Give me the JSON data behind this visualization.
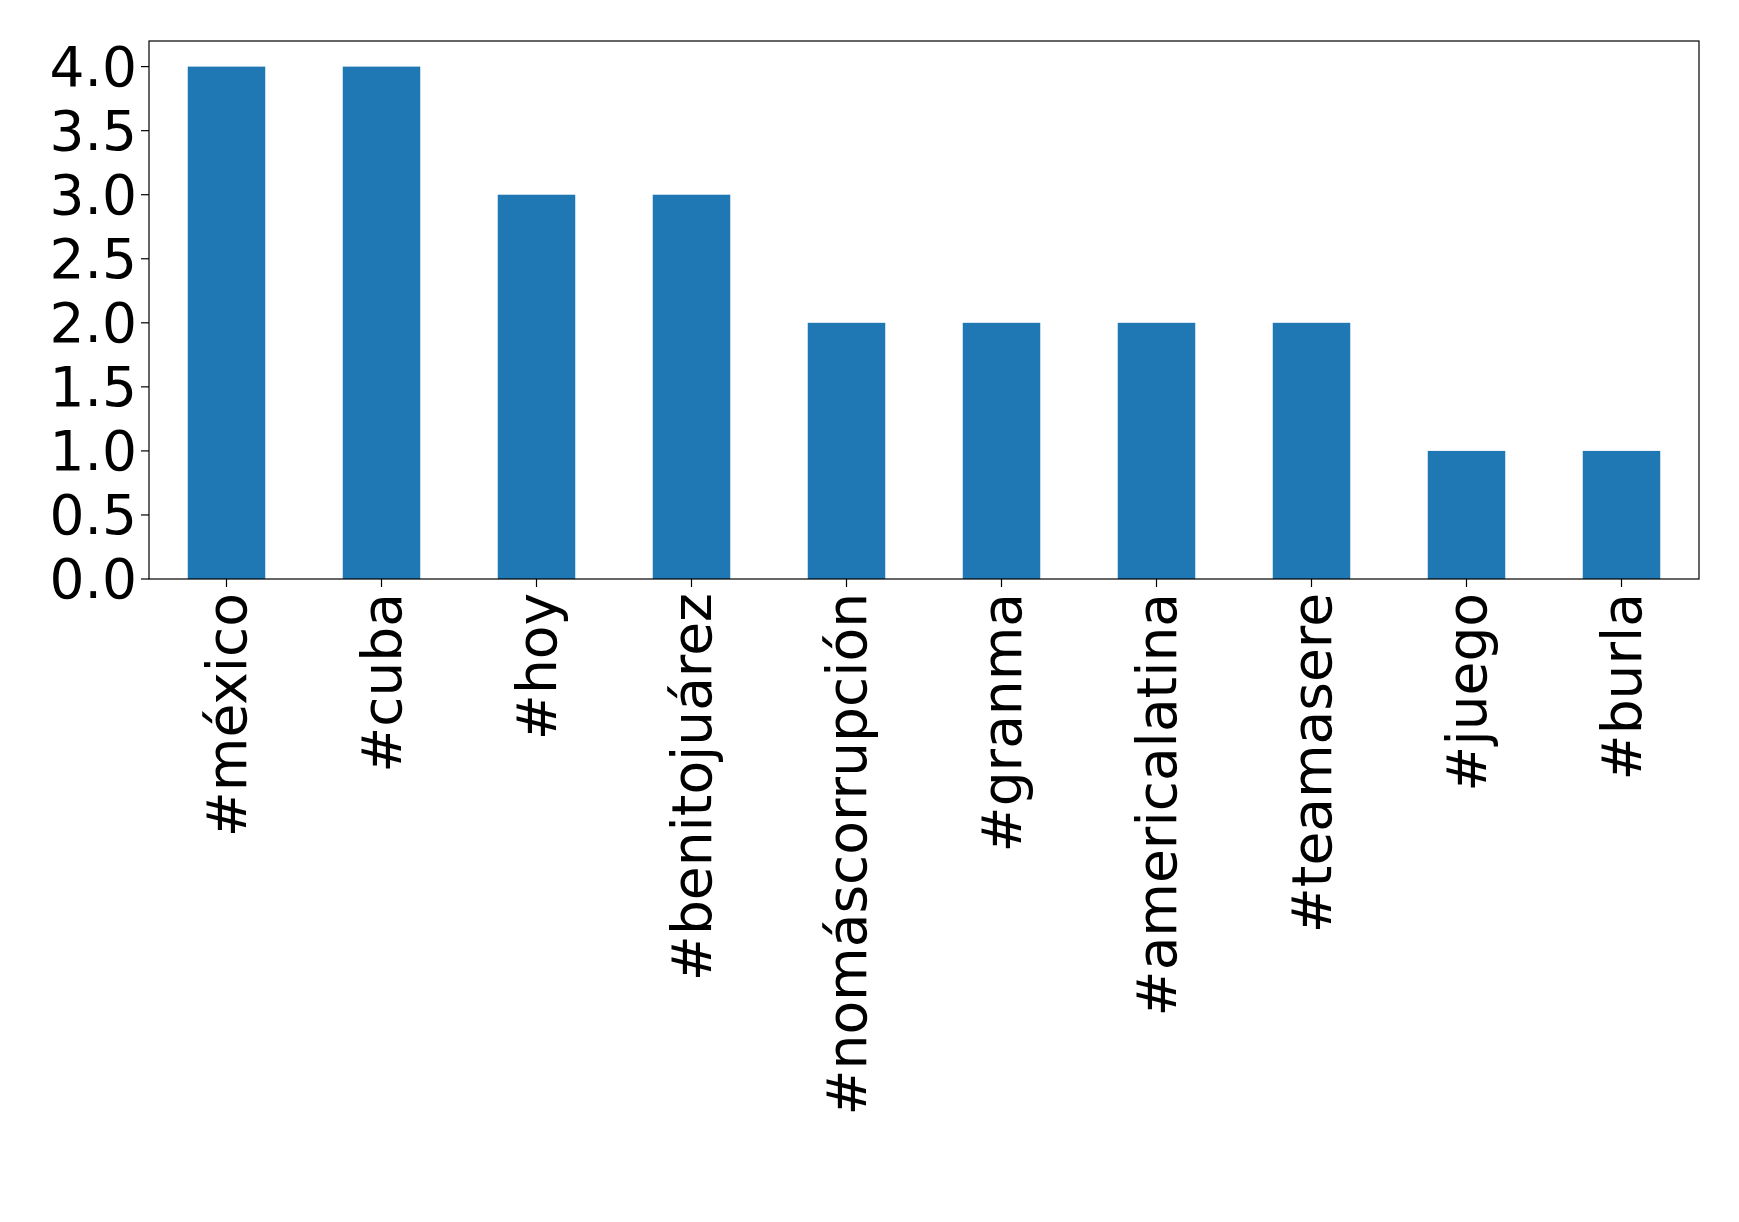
{
  "chart_data": {
    "type": "bar",
    "categories": [
      "#méxico",
      "#cuba",
      "#hoy",
      "#benitojuárez",
      "#nomáscorrupción",
      "#granma",
      "#americalatina",
      "#teamasere",
      "#juego",
      "#burla"
    ],
    "values": [
      4,
      4,
      3,
      3,
      2,
      2,
      2,
      2,
      1,
      1
    ],
    "color": "#1f77b4",
    "ylim": [
      0,
      4.2
    ],
    "yticks": [
      {
        "value": 0,
        "label": "0.0"
      },
      {
        "value": 0.5,
        "label": "0.5"
      },
      {
        "value": 1,
        "label": "1.0"
      },
      {
        "value": 1.5,
        "label": "1.5"
      },
      {
        "value": 2,
        "label": "2.0"
      },
      {
        "value": 2.5,
        "label": "2.5"
      },
      {
        "value": 3,
        "label": "3.0"
      },
      {
        "value": 3.5,
        "label": "3.5"
      },
      {
        "value": 4,
        "label": "4.0"
      }
    ]
  }
}
